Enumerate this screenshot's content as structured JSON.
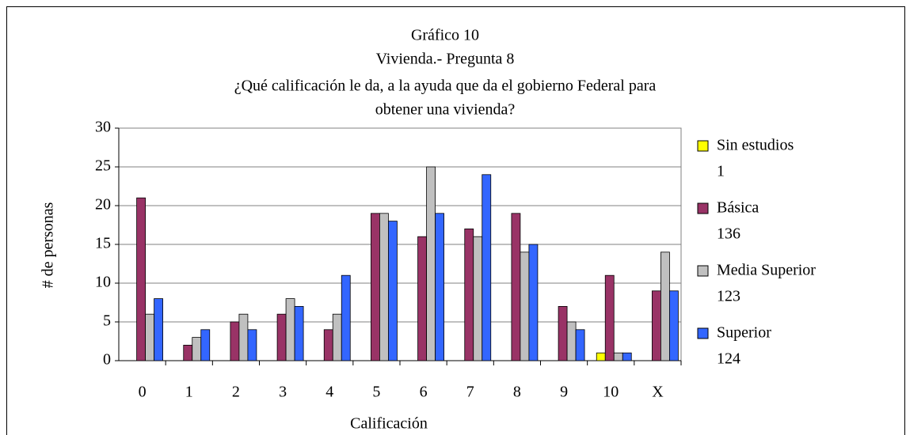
{
  "chart_data": {
    "type": "bar",
    "title": [
      "Gráfico 10",
      "Vivienda.- Pregunta 8",
      "¿Qué calificación le da, a la ayuda que da el gobierno Federal para",
      "obtener una vivienda?"
    ],
    "x_label": "Calificación",
    "y_label": "# de personas",
    "categories": [
      "0",
      "1",
      "2",
      "3",
      "4",
      "5",
      "6",
      "7",
      "8",
      "9",
      "10",
      "X"
    ],
    "series": [
      {
        "name": "Sin estudios",
        "total": 1,
        "color": "#ffff00",
        "values": [
          0,
          0,
          0,
          0,
          0,
          0,
          0,
          0,
          0,
          0,
          1,
          0
        ]
      },
      {
        "name": "Básica",
        "total": 136,
        "color": "#993366",
        "values": [
          21,
          2,
          5,
          6,
          4,
          19,
          16,
          17,
          19,
          7,
          11,
          9
        ]
      },
      {
        "name": "Media Superior",
        "total": 123,
        "color": "#c0c0c0",
        "values": [
          6,
          3,
          6,
          8,
          6,
          19,
          25,
          16,
          14,
          5,
          1,
          14
        ]
      },
      {
        "name": "Superior",
        "total": 124,
        "color": "#3366ff",
        "values": [
          8,
          4,
          4,
          7,
          11,
          18,
          19,
          24,
          15,
          4,
          1,
          9
        ]
      }
    ],
    "ylim": [
      0,
      30
    ],
    "yticks": [
      0,
      5,
      10,
      15,
      20,
      25,
      30
    ],
    "grid": true,
    "legend": "right"
  }
}
